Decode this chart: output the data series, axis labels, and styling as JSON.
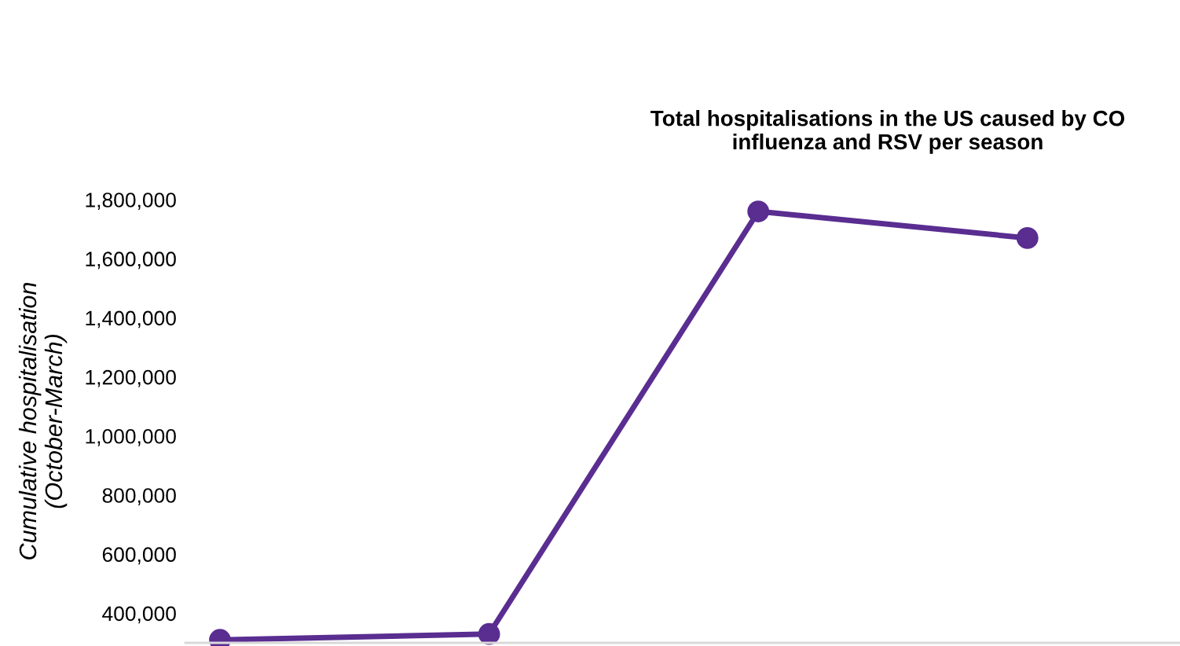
{
  "chart_data": {
    "type": "line",
    "title": "Total hospitalisations in the US caused by CO\ninfluenza and RSV per season",
    "ylabel": "Cumulative hospitalisation\n(October-March)",
    "categories": [
      null,
      null,
      null,
      null
    ],
    "series": [
      {
        "color": "#5a2d91",
        "values": [
          310000,
          330000,
          1760000,
          1670000
        ]
      }
    ],
    "ylim": [
      300000,
      1800000
    ],
    "yticks": [
      {
        "value": 400000,
        "label": "400,000"
      },
      {
        "value": 600000,
        "label": "600,000"
      },
      {
        "value": 800000,
        "label": "800,000"
      },
      {
        "value": 1000000,
        "label": "1,000,000"
      },
      {
        "value": 1200000,
        "label": "1,200,000"
      },
      {
        "value": 1400000,
        "label": "1,400,000"
      },
      {
        "value": 1600000,
        "label": "1,600,000"
      },
      {
        "value": 1800000,
        "label": "1,800,000"
      }
    ],
    "grid": false,
    "legend": false,
    "marker": "circle",
    "line_style": "solid"
  }
}
